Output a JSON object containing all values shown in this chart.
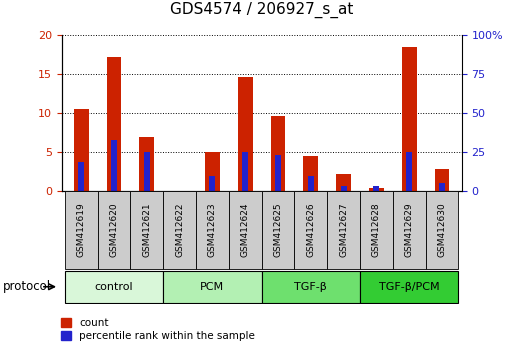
{
  "title": "GDS4574 / 206927_s_at",
  "samples": [
    "GSM412619",
    "GSM412620",
    "GSM412621",
    "GSM412622",
    "GSM412623",
    "GSM412624",
    "GSM412625",
    "GSM412626",
    "GSM412627",
    "GSM412628",
    "GSM412629",
    "GSM412630"
  ],
  "count_values": [
    10.5,
    17.2,
    7.0,
    0.05,
    5.0,
    14.7,
    9.6,
    4.5,
    2.2,
    0.4,
    18.5,
    2.8
  ],
  "percentile_values": [
    19,
    33,
    25,
    0,
    10,
    25,
    23,
    10,
    3,
    3,
    25,
    5
  ],
  "groups": [
    {
      "label": "control",
      "indices": [
        0,
        1,
        2
      ],
      "color": "#d9f7d9"
    },
    {
      "label": "PCM",
      "indices": [
        3,
        4,
        5
      ],
      "color": "#b3f0b3"
    },
    {
      "label": "TGF-β",
      "indices": [
        6,
        7,
        8
      ],
      "color": "#6ee06e"
    },
    {
      "label": "TGF-β/PCM",
      "indices": [
        9,
        10,
        11
      ],
      "color": "#33cc33"
    }
  ],
  "left_ylim": [
    0,
    20
  ],
  "right_ylim": [
    0,
    100
  ],
  "left_yticks": [
    0,
    5,
    10,
    15,
    20
  ],
  "right_yticks": [
    0,
    25,
    50,
    75,
    100
  ],
  "right_yticklabels": [
    "0",
    "25",
    "50",
    "75",
    "100%"
  ],
  "bar_color_red": "#cc2200",
  "bar_color_blue": "#2222cc",
  "red_bar_width": 0.45,
  "blue_bar_width": 0.18,
  "sample_box_color": "#cccccc",
  "protocol_label": "protocol"
}
